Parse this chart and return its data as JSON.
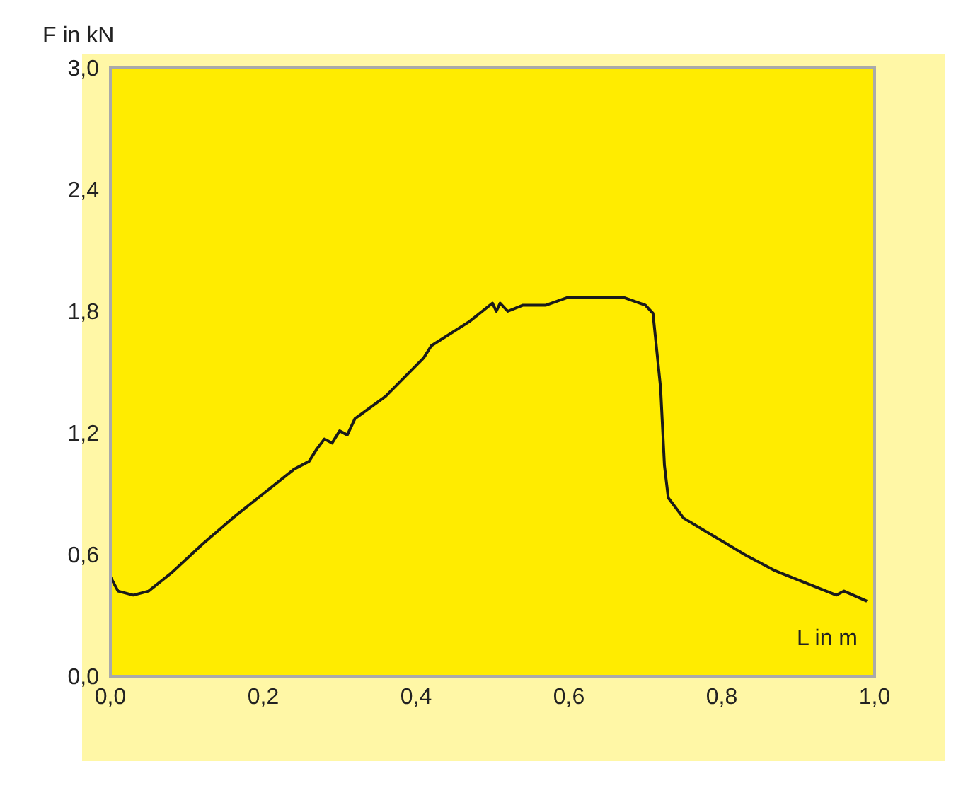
{
  "chart_data": {
    "type": "line",
    "xlabel": "L in m",
    "ylabel": "F in kN",
    "x": [
      0.0,
      0.01,
      0.03,
      0.05,
      0.08,
      0.12,
      0.16,
      0.2,
      0.24,
      0.26,
      0.27,
      0.28,
      0.29,
      0.3,
      0.31,
      0.32,
      0.36,
      0.41,
      0.42,
      0.47,
      0.5,
      0.505,
      0.51,
      0.52,
      0.54,
      0.57,
      0.6,
      0.62,
      0.67,
      0.7,
      0.71,
      0.72,
      0.725,
      0.73,
      0.75,
      0.79,
      0.83,
      0.87,
      0.91,
      0.95,
      0.96,
      0.99
    ],
    "series": [
      {
        "color": "#1a1a1a",
        "values": [
          0.49,
          0.42,
          0.4,
          0.42,
          0.51,
          0.65,
          0.78,
          0.9,
          1.02,
          1.06,
          1.12,
          1.17,
          1.15,
          1.21,
          1.19,
          1.27,
          1.38,
          1.57,
          1.63,
          1.75,
          1.84,
          1.8,
          1.84,
          1.8,
          1.83,
          1.83,
          1.87,
          1.87,
          1.87,
          1.83,
          1.79,
          1.42,
          1.04,
          0.88,
          0.78,
          0.69,
          0.6,
          0.52,
          0.46,
          0.4,
          0.42,
          0.37
        ]
      }
    ],
    "xlim": [
      0,
      1
    ],
    "xticks": [
      {
        "value": 0,
        "label": "0,0"
      },
      {
        "value": 0.2,
        "label": "0,2"
      },
      {
        "value": 0.4,
        "label": "0,4"
      },
      {
        "value": 0.6,
        "label": "0,6"
      },
      {
        "value": 0.8,
        "label": "0,8"
      },
      {
        "value": 1,
        "label": "1,0"
      }
    ],
    "ylim": [
      0,
      3
    ],
    "yticks": [
      {
        "value": 0,
        "label": "0,0"
      },
      {
        "value": 0.6,
        "label": "0,6"
      },
      {
        "value": 1.2,
        "label": "1,2"
      },
      {
        "value": 1.8,
        "label": "1,8"
      },
      {
        "value": 2.4,
        "label": "2,4"
      },
      {
        "value": 3,
        "label": "3,0"
      }
    ],
    "grid": false,
    "legend": false,
    "marker": "none",
    "line_style": "solid"
  }
}
